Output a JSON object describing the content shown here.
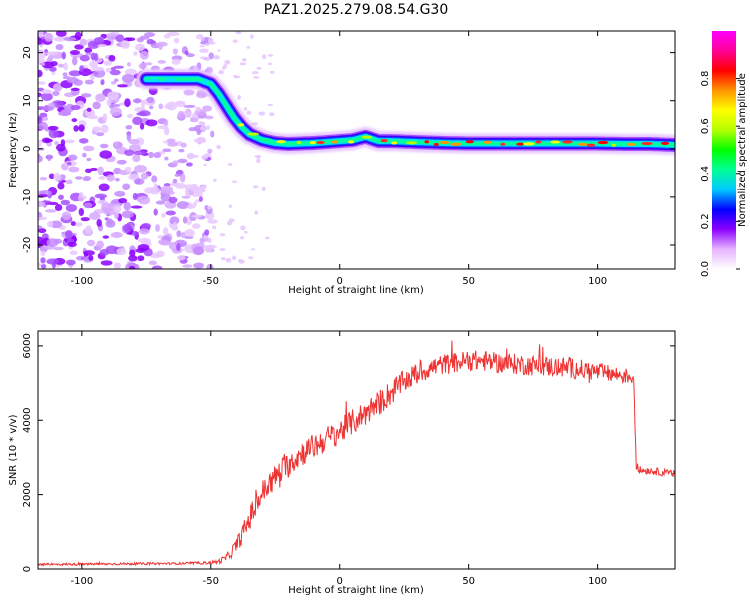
{
  "title": "PAZ1.2025.279.08.54.G30",
  "chart_data": [
    {
      "type": "heatmap",
      "xlabel": "Height of straight line (km)",
      "ylabel": "Frequency (Hz)",
      "xlim": [
        -117,
        130
      ],
      "ylim": [
        -25,
        24.5
      ],
      "xticks": [
        -100,
        -50,
        0,
        50,
        100
      ],
      "yticks": [
        -20,
        -10,
        0,
        10,
        20
      ],
      "ridge": {
        "x": [
          -75,
          -65,
          -55,
          -50,
          -47,
          -44,
          -41,
          -38,
          -35,
          -30,
          -25,
          -20,
          -10,
          0,
          5,
          10,
          15,
          20,
          30,
          40,
          50,
          60,
          70,
          80,
          90,
          100,
          110,
          120,
          130
        ],
        "freq": [
          14.5,
          14.5,
          14.5,
          13.5,
          11.5,
          9,
          6.5,
          4.5,
          3,
          1.8,
          1.2,
          1,
          1.2,
          1.6,
          1.8,
          2.5,
          1.6,
          1.6,
          1.4,
          1.2,
          1.1,
          1.1,
          1.1,
          1.1,
          1.1,
          1.1,
          1,
          1,
          0.8
        ]
      },
      "colorbar": {
        "label": "Normalized spectral amplitude",
        "ticks": [
          "0.0",
          "0.2",
          "0.4",
          "0.6",
          "0.8"
        ],
        "colors": [
          "#ffffff",
          "#e6b4ff",
          "#8c00ff",
          "#0000ff",
          "#00c8ff",
          "#00ff96",
          "#00ff00",
          "#b4ff00",
          "#ffff00",
          "#ff9600",
          "#ff0000",
          "#ff0096",
          "#ff00ff"
        ]
      }
    },
    {
      "type": "line",
      "xlabel": "Height of straight line (km)",
      "ylabel": "SNR (10 * v/v)",
      "xlim": [
        -117,
        130
      ],
      "ylim": [
        0,
        6400
      ],
      "xticks": [
        -100,
        -50,
        0,
        50,
        100
      ],
      "yticks": [
        0,
        2000,
        4000,
        6000
      ],
      "series": [
        {
          "name": "SNR",
          "color": "#ee3333",
          "x": [
            -117,
            -100,
            -80,
            -60,
            -50,
            -47,
            -44,
            -42,
            -40,
            -38,
            -36,
            -34,
            -32,
            -30,
            -27,
            -24,
            -20,
            -15,
            -10,
            -5,
            0,
            5,
            10,
            15,
            20,
            25,
            30,
            35,
            40,
            45,
            50,
            55,
            60,
            70,
            80,
            90,
            100,
            110,
            114,
            115,
            117,
            120,
            130
          ],
          "y": [
            120,
            130,
            140,
            150,
            170,
            200,
            300,
            450,
            650,
            900,
            1200,
            1500,
            1800,
            2050,
            2300,
            2550,
            2800,
            3100,
            3300,
            3500,
            3700,
            3950,
            4200,
            4450,
            4750,
            5050,
            5250,
            5400,
            5500,
            5550,
            5600,
            5600,
            5550,
            5500,
            5450,
            5400,
            5300,
            5200,
            5150,
            2700,
            2650,
            2650,
            2550
          ],
          "noise": [
            30,
            30,
            30,
            30,
            40,
            60,
            100,
            150,
            200,
            250,
            300,
            350,
            350,
            350,
            350,
            350,
            350,
            350,
            350,
            350,
            350,
            350,
            350,
            350,
            350,
            300,
            300,
            280,
            280,
            280,
            280,
            280,
            280,
            280,
            280,
            280,
            250,
            220,
            200,
            120,
            100,
            100,
            100
          ]
        }
      ]
    }
  ]
}
